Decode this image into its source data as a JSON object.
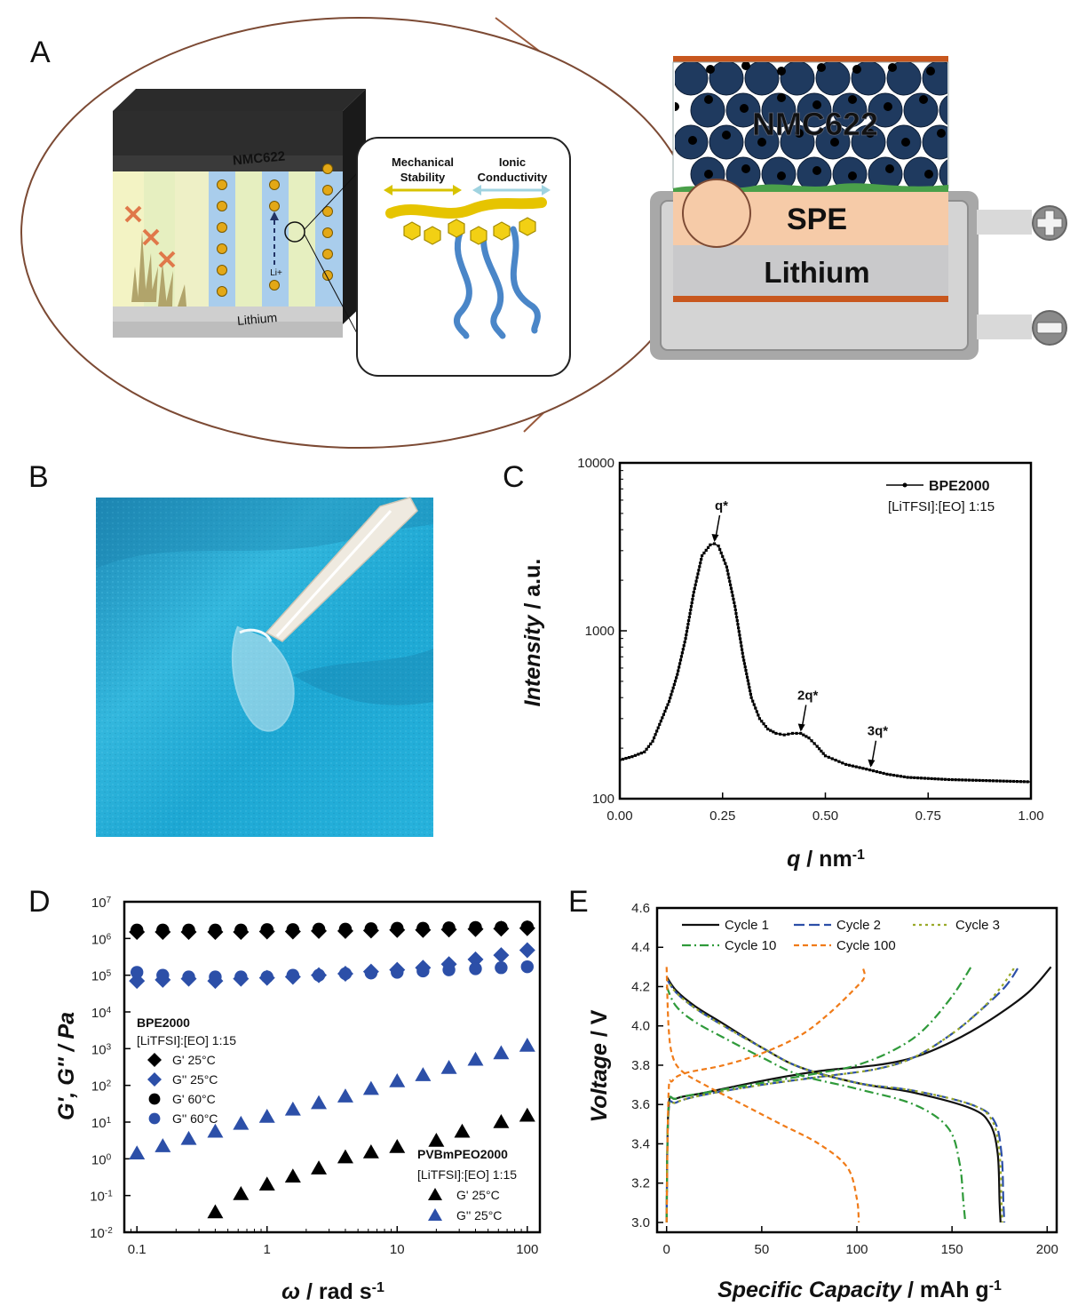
{
  "panels": {
    "a": "A",
    "b": "B",
    "c": "C",
    "d": "D",
    "e": "E"
  },
  "panel_a": {
    "cube_label": "NMC622",
    "cube_bottom_label": "Lithium",
    "ion_label": "Li+",
    "mechanical_label_1": "Mechanical",
    "mechanical_label_2": "Stability",
    "ionic_label_1": "Ionic",
    "ionic_label_2": "Conductivity",
    "cell_cathode": "NMC622",
    "cell_electrolyte": "SPE",
    "cell_anode": "Lithium",
    "plus_icon": "plus-terminal-icon",
    "minus_icon": "minus-terminal-icon",
    "colors": {
      "cathode": "#1f3a5f",
      "spe": "#f6cba8",
      "lithium": "#c9c9cb",
      "collector": "#c8571e",
      "ion": "#e3a817",
      "pendant": "#f2d014",
      "chain": "#5b9bd5"
    }
  },
  "chart_data": [
    {
      "panel": "C",
      "type": "scatter",
      "xlabel_main": "q",
      "xlabel_unit": " / nm",
      "xlabel_sup": "-1",
      "ylabel_main": "Intensity",
      "ylabel_unit": " / a.u.",
      "xlim": [
        0.0,
        1.0
      ],
      "ylim": [
        100,
        10000
      ],
      "yscale": "log",
      "x_ticks": [
        "0.00",
        "0.25",
        "0.50",
        "0.75",
        "1.00"
      ],
      "y_ticks": [
        "100",
        "1000",
        "10000"
      ],
      "legend": {
        "position": "top-right",
        "series": "BPE2000",
        "note": "[LiTFSI]:[EO] 1:15"
      },
      "annotations": [
        {
          "text": "q*",
          "x": 0.23,
          "y": 3300
        },
        {
          "text": "2q*",
          "x": 0.44,
          "y": 245
        },
        {
          "text": "3q*",
          "x": 0.61,
          "y": 150
        }
      ],
      "series": [
        {
          "name": "BPE2000",
          "x": [
            0.0,
            0.03,
            0.06,
            0.08,
            0.1,
            0.12,
            0.14,
            0.16,
            0.18,
            0.2,
            0.22,
            0.23,
            0.24,
            0.26,
            0.28,
            0.3,
            0.32,
            0.34,
            0.36,
            0.38,
            0.4,
            0.42,
            0.44,
            0.46,
            0.48,
            0.5,
            0.55,
            0.6,
            0.65,
            0.7,
            0.8,
            0.9,
            1.0
          ],
          "y": [
            170,
            178,
            190,
            220,
            290,
            380,
            550,
            900,
            1700,
            2800,
            3250,
            3300,
            3200,
            2400,
            1400,
            700,
            400,
            300,
            260,
            245,
            240,
            245,
            245,
            230,
            205,
            180,
            160,
            150,
            140,
            134,
            130,
            128,
            126
          ]
        }
      ]
    },
    {
      "panel": "D",
      "type": "scatter",
      "xlabel_main": "ω",
      "xlabel_unit": " / rad s",
      "xlabel_sup": "-1",
      "ylabel": "G', G'' / Pa",
      "xscale": "log",
      "yscale": "log",
      "xlim": [
        0.08,
        125
      ],
      "ylim_exp": [
        -2,
        7
      ],
      "x_ticks": [
        "0.1",
        "1",
        "10",
        "100"
      ],
      "legend_top": {
        "title": "BPE2000",
        "note": "[LiTFSI]:[EO] 1:15",
        "position": "middle-left"
      },
      "legend_bottom": {
        "title": "PVBmPEO2000",
        "note": "[LiTFSI]:[EO] 1:15",
        "position": "bottom-right"
      },
      "series": [
        {
          "name": "G' 25°C",
          "group": "BPE2000",
          "marker": "diamond",
          "color": "#000000",
          "x": [
            0.1,
            0.158,
            0.25,
            0.4,
            0.63,
            1,
            1.58,
            2.5,
            4,
            6.3,
            10,
            15.8,
            25,
            40,
            63,
            100
          ],
          "y": [
            1500000.0,
            1500000.0,
            1500000.0,
            1500000.0,
            1500000.0,
            1550000.0,
            1550000.0,
            1600000.0,
            1600000.0,
            1650000.0,
            1700000.0,
            1700000.0,
            1750000.0,
            1800000.0,
            1850000.0,
            1900000.0
          ]
        },
        {
          "name": "G'' 25°C",
          "group": "BPE2000",
          "marker": "diamond",
          "color": "#2c4fa8",
          "x": [
            0.1,
            0.158,
            0.25,
            0.4,
            0.63,
            1,
            1.58,
            2.5,
            4,
            6.3,
            10,
            15.8,
            25,
            40,
            63,
            100
          ],
          "y": [
            70000.0,
            75000.0,
            80000.0,
            70000.0,
            80000.0,
            85000.0,
            90000.0,
            100000.0,
            110000.0,
            125000.0,
            140000.0,
            160000.0,
            200000.0,
            270000.0,
            350000.0,
            480000.0
          ]
        },
        {
          "name": "G' 60°C",
          "group": "BPE2000",
          "marker": "circle",
          "color": "#000000",
          "x": [
            0.1,
            0.158,
            0.25,
            0.4,
            0.63,
            1,
            1.58,
            2.5,
            4,
            6.3,
            10,
            15.8,
            25,
            40,
            63,
            100
          ],
          "y": [
            1700000.0,
            1700000.0,
            1700000.0,
            1700000.0,
            1700000.0,
            1750000.0,
            1750000.0,
            1800000.0,
            1800000.0,
            1850000.0,
            1900000.0,
            1900000.0,
            1950000.0,
            2000000.0,
            2000000.0,
            2050000.0
          ]
        },
        {
          "name": "G'' 60°C",
          "group": "BPE2000",
          "marker": "circle",
          "color": "#2c4fa8",
          "x": [
            0.1,
            0.158,
            0.25,
            0.4,
            0.63,
            1,
            1.58,
            2.5,
            4,
            6.3,
            10,
            15.8,
            25,
            40,
            63,
            100
          ],
          "y": [
            120000.0,
            100000.0,
            90000.0,
            90000.0,
            90000.0,
            90000.0,
            100000.0,
            100000.0,
            110000.0,
            115000.0,
            120000.0,
            130000.0,
            140000.0,
            150000.0,
            160000.0,
            170000.0
          ]
        },
        {
          "name": "G' 25°C",
          "group": "PVBmPEO2000",
          "marker": "triangle",
          "color": "#000000",
          "x": [
            0.4,
            0.63,
            1,
            1.58,
            2.5,
            4,
            6.3,
            10,
            20,
            31.6,
            63,
            100
          ],
          "y": [
            0.035,
            0.11,
            0.2,
            0.33,
            0.55,
            1.1,
            1.5,
            2.1,
            3.1,
            5.5,
            10,
            15
          ]
        },
        {
          "name": "G'' 25°C",
          "group": "PVBmPEO2000",
          "marker": "triangle",
          "color": "#2c4fa8",
          "x": [
            0.1,
            0.158,
            0.25,
            0.4,
            0.63,
            1,
            1.58,
            2.5,
            4,
            6.3,
            10,
            15.8,
            25,
            40,
            63,
            100
          ],
          "y": [
            1.4,
            2.2,
            3.5,
            5.5,
            9,
            14,
            22,
            33,
            50,
            80,
            130,
            190,
            300,
            500,
            750,
            1200
          ]
        }
      ]
    },
    {
      "panel": "E",
      "type": "line",
      "xlabel_main": "Specific Capacity",
      "xlabel_unit": " / mAh g",
      "xlabel_sup": "-1",
      "ylabel_main": "Voltage",
      "ylabel_unit": " / V",
      "xlim": [
        -5,
        205
      ],
      "ylim": [
        2.95,
        4.6
      ],
      "x_ticks": [
        0,
        50,
        100,
        150,
        200
      ],
      "y_ticks": [
        "3.0",
        "3.2",
        "3.4",
        "3.6",
        "3.8",
        "4.0",
        "4.2",
        "4.4",
        "4.6"
      ],
      "legend_position": "top",
      "series": [
        {
          "name": "Cycle 1",
          "color": "#111111",
          "dash": "solid",
          "charge": [
            [
              0,
              3.0
            ],
            [
              1,
              3.58
            ],
            [
              5,
              3.63
            ],
            [
              20,
              3.66
            ],
            [
              50,
              3.72
            ],
            [
              80,
              3.77
            ],
            [
              110,
              3.8
            ],
            [
              130,
              3.84
            ],
            [
              150,
              3.92
            ],
            [
              170,
              4.03
            ],
            [
              190,
              4.17
            ],
            [
              202,
              4.3
            ]
          ],
          "discharge": [
            [
              0,
              4.25
            ],
            [
              5,
              4.18
            ],
            [
              15,
              4.1
            ],
            [
              30,
              4.01
            ],
            [
              50,
              3.89
            ],
            [
              70,
              3.79
            ],
            [
              100,
              3.71
            ],
            [
              130,
              3.66
            ],
            [
              160,
              3.58
            ],
            [
              170,
              3.5
            ],
            [
              174,
              3.35
            ],
            [
              175,
              3.1
            ],
            [
              175.5,
              3.0
            ]
          ]
        },
        {
          "name": "Cycle 2",
          "color": "#2c4fa8",
          "dash": "long",
          "charge": [
            [
              0,
              3.0
            ],
            [
              1,
              3.56
            ],
            [
              5,
              3.61
            ],
            [
              20,
              3.65
            ],
            [
              50,
              3.7
            ],
            [
              80,
              3.74
            ],
            [
              110,
              3.78
            ],
            [
              130,
              3.84
            ],
            [
              150,
              3.96
            ],
            [
              165,
              4.08
            ],
            [
              178,
              4.2
            ],
            [
              185,
              4.3
            ]
          ],
          "discharge": [
            [
              0,
              4.24
            ],
            [
              5,
              4.17
            ],
            [
              15,
              4.09
            ],
            [
              30,
              4.0
            ],
            [
              50,
              3.89
            ],
            [
              70,
              3.79
            ],
            [
              100,
              3.71
            ],
            [
              130,
              3.67
            ],
            [
              160,
              3.6
            ],
            [
              172,
              3.52
            ],
            [
              176,
              3.35
            ],
            [
              177,
              3.1
            ],
            [
              177.5,
              3.0
            ]
          ]
        },
        {
          "name": "Cycle 3",
          "color": "#9aaa2a",
          "dash": "dot",
          "charge": [
            [
              0,
              3.0
            ],
            [
              1,
              3.56
            ],
            [
              5,
              3.61
            ],
            [
              20,
              3.65
            ],
            [
              50,
              3.7
            ],
            [
              80,
              3.74
            ],
            [
              110,
              3.78
            ],
            [
              130,
              3.84
            ],
            [
              150,
              3.96
            ],
            [
              165,
              4.08
            ],
            [
              176,
              4.2
            ],
            [
              183,
              4.3
            ]
          ],
          "discharge": [
            [
              0,
              4.24
            ],
            [
              5,
              4.17
            ],
            [
              15,
              4.09
            ],
            [
              30,
              4.0
            ],
            [
              50,
              3.89
            ],
            [
              70,
              3.79
            ],
            [
              100,
              3.71
            ],
            [
              130,
              3.67
            ],
            [
              160,
              3.6
            ],
            [
              171,
              3.52
            ],
            [
              175,
              3.35
            ],
            [
              176,
              3.1
            ],
            [
              176.5,
              3.0
            ]
          ]
        },
        {
          "name": "Cycle 10",
          "color": "#2f9a3a",
          "dash": "dashdot",
          "charge": [
            [
              0,
              3.0
            ],
            [
              1,
              3.58
            ],
            [
              5,
              3.63
            ],
            [
              20,
              3.66
            ],
            [
              50,
              3.71
            ],
            [
              80,
              3.76
            ],
            [
              100,
              3.8
            ],
            [
              120,
              3.88
            ],
            [
              135,
              3.98
            ],
            [
              150,
              4.15
            ],
            [
              160,
              4.3
            ]
          ],
          "discharge": [
            [
              0,
              4.2
            ],
            [
              5,
              4.1
            ],
            [
              15,
              4.02
            ],
            [
              30,
              3.94
            ],
            [
              50,
              3.84
            ],
            [
              70,
              3.75
            ],
            [
              100,
              3.68
            ],
            [
              130,
              3.6
            ],
            [
              148,
              3.48
            ],
            [
              154,
              3.3
            ],
            [
              156,
              3.1
            ],
            [
              157,
              3.0
            ]
          ]
        },
        {
          "name": "Cycle 100",
          "color": "#f07b18",
          "dash": "short",
          "charge": [
            [
              0,
              3.0
            ],
            [
              1,
              3.65
            ],
            [
              3,
              3.72
            ],
            [
              10,
              3.76
            ],
            [
              30,
              3.8
            ],
            [
              50,
              3.86
            ],
            [
              70,
              3.95
            ],
            [
              85,
              4.06
            ],
            [
              100,
              4.2
            ],
            [
              104,
              4.25
            ],
            [
              103,
              4.3
            ]
          ],
          "discharge": [
            [
              0,
              4.3
            ],
            [
              1,
              4.0
            ],
            [
              3,
              3.85
            ],
            [
              8,
              3.77
            ],
            [
              20,
              3.7
            ],
            [
              40,
              3.6
            ],
            [
              60,
              3.5
            ],
            [
              80,
              3.4
            ],
            [
              95,
              3.28
            ],
            [
              100,
              3.12
            ],
            [
              101,
              3.0
            ]
          ]
        }
      ]
    }
  ]
}
